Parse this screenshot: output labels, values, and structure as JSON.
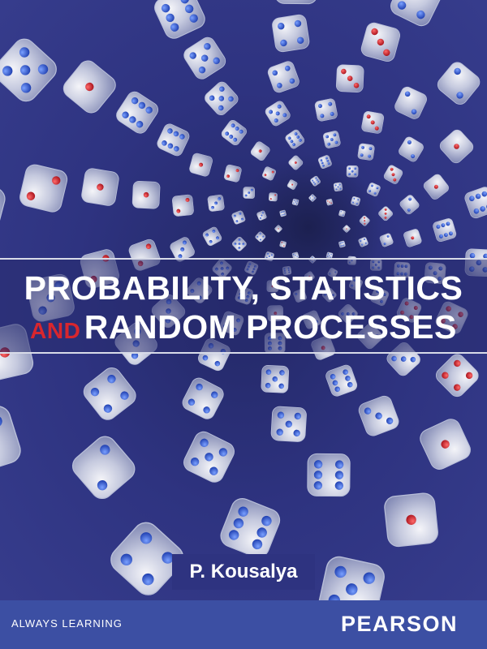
{
  "cover": {
    "title_line1": "PROBABILITY, STATISTICS",
    "title_and": "AND",
    "title_rest": "RANDOM PROCESSES",
    "author": "P. Kousalya",
    "tagline": "ALWAYS LEARNING",
    "publisher": "PEARSON"
  },
  "colors": {
    "background": "#2e3380",
    "footer": "#3c4fa3",
    "title": "#ffffff",
    "accent_red": "#d8262e",
    "pip_blue": "#2a54c8",
    "pip_red": "#c8202a"
  },
  "artwork": {
    "subject": "spiral of translucent dice",
    "icon": "dice-spiral-illustration"
  }
}
